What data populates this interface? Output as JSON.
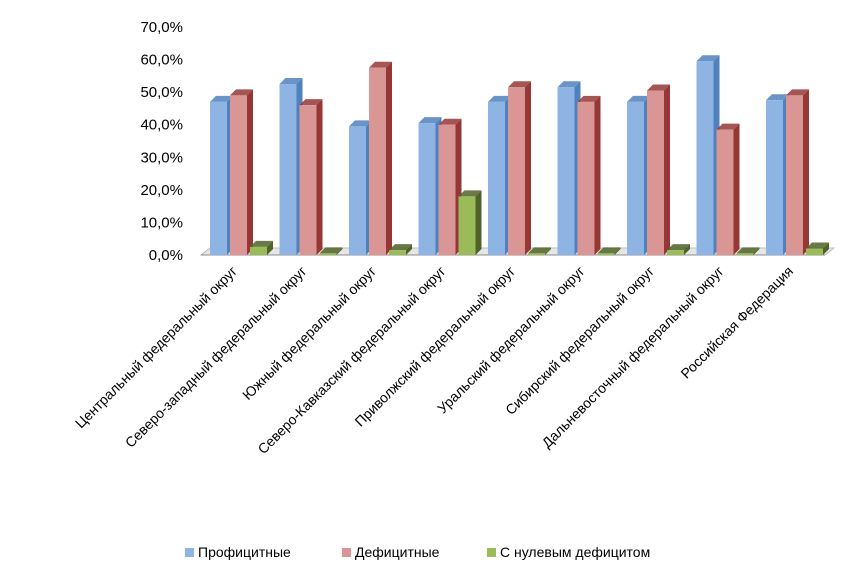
{
  "chart_data": {
    "type": "bar",
    "categories": [
      "Центральный федеральный округ",
      "Северо-западный федеральный округ",
      "Южный федеральный округ",
      "Северо-Кавказский федеральный округ",
      "Приволжский федеральный округ",
      "Уральский федеральный округ",
      "Сибирский федеральный округ",
      "Дальневосточный федеральный округ",
      "Российская Федерация"
    ],
    "series": [
      {
        "name": "Профицитные",
        "values": [
          47.0,
          52.5,
          39.5,
          40.5,
          47.0,
          51.5,
          47.0,
          59.5,
          47.5
        ],
        "color": "#8eb4e3",
        "side": "#4f81bd"
      },
      {
        "name": "Дефицитные",
        "values": [
          49.0,
          46.0,
          57.5,
          40.0,
          51.5,
          47.0,
          50.5,
          38.5,
          49.0
        ],
        "color": "#d99694",
        "side": "#953735"
      },
      {
        "name": "С нулевым дефицитом",
        "values": [
          2.5,
          0.5,
          1.5,
          18.0,
          0.5,
          0.5,
          1.5,
          0.5,
          2.0
        ],
        "color": "#9bbb59",
        "side": "#4f6228"
      }
    ],
    "yticks": [
      "0,0%",
      "10,0%",
      "20,0%",
      "30,0%",
      "40,0%",
      "50,0%",
      "60,0%",
      "70,0%"
    ],
    "ylim": [
      0,
      70
    ],
    "legend_position": "bottom",
    "grid": false
  }
}
